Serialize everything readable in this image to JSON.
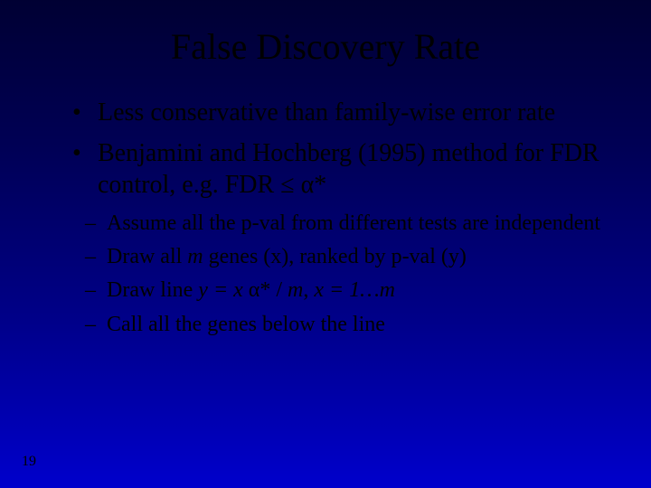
{
  "colors": {
    "text": "#000000",
    "bg_gradient_stops": [
      "#000033",
      "#000055",
      "#000088",
      "#0000cc"
    ]
  },
  "typography": {
    "family": "Times New Roman",
    "title_fontsize": 40,
    "bullet_fontsize": 28,
    "subbullet_fontsize": 24,
    "pagenum_fontsize": 16
  },
  "slide": {
    "title": "False Discovery Rate",
    "bullets": [
      {
        "text": "Less conservative than family-wise error rate"
      },
      {
        "text_html": "Benjamini and Hochberg (1995) method for FDR control, e.g. FDR ≤ α*"
      }
    ],
    "sub_bullets": [
      {
        "text": "Assume all the p-val from different tests are independent"
      },
      {
        "text_html": "Draw all <span class=\"italic\">m</span> genes (x), ranked by p-val (y)"
      },
      {
        "text_html": "Draw line <span class=\"italic\">y = x</span> α* / <span class=\"italic\">m</span>, <span class=\"italic\">x = 1…m</span>"
      },
      {
        "text": "Call all the genes below the line"
      }
    ],
    "page_number": "19"
  }
}
